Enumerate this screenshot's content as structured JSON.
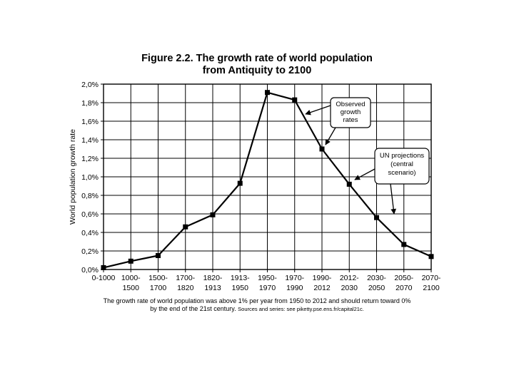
{
  "figure": {
    "title_line1": "Figure 2.2. The growth rate of world population",
    "title_line2": "from Antiquity to 2100"
  },
  "chart_data": {
    "type": "line",
    "categories": [
      "0-1000",
      "1000-1500",
      "1500-1700",
      "1700-1820",
      "1820-1913",
      "1913-1950",
      "1950-1970",
      "1970-1990",
      "1990-2012",
      "2012-2030",
      "2030-2050",
      "2050-2070",
      "2070-2100"
    ],
    "category_lines": [
      [
        "0-1000"
      ],
      [
        "1000-",
        "1500"
      ],
      [
        "1500-",
        "1700"
      ],
      [
        "1700-",
        "1820"
      ],
      [
        "1820-",
        "1913"
      ],
      [
        "1913-",
        "1950"
      ],
      [
        "1950-",
        "1970"
      ],
      [
        "1970-",
        "1990"
      ],
      [
        "1990-",
        "2012"
      ],
      [
        "2012-",
        "2030"
      ],
      [
        "2030-",
        "2050"
      ],
      [
        "2050-",
        "2070"
      ],
      [
        "2070-",
        "2100"
      ]
    ],
    "values": [
      0.0002,
      0.0009,
      0.0015,
      0.0046,
      0.0059,
      0.0093,
      0.0191,
      0.0183,
      0.013,
      0.0092,
      0.0056,
      0.0027,
      0.0014
    ],
    "ylabel": "World population growth rate",
    "ylim": [
      0,
      0.02
    ],
    "yticks": [
      0,
      0.002,
      0.004,
      0.006,
      0.008,
      0.01,
      0.012,
      0.014,
      0.016,
      0.018,
      0.02
    ],
    "ytick_labels": [
      "0,0%",
      "0,2%",
      "0,4%",
      "0,6%",
      "0,8%",
      "1,0%",
      "1,2%",
      "1,4%",
      "1,6%",
      "1,8%",
      "2,0%"
    ],
    "grid": true,
    "annotations": [
      {
        "lines": [
          "Observed",
          "growth",
          "rates"
        ]
      },
      {
        "lines": [
          "UN  projections",
          "(central",
          "scenario)"
        ]
      }
    ],
    "colors": {
      "line": "#000000",
      "grid": "#000000",
      "background": "#ffffff"
    }
  },
  "caption": {
    "line1": "The growth rate of world population was above 1% per year from 1950 to 2012 and should return toward 0%",
    "line2": "by the end of the 21st century.",
    "source": "Sources and series: see piketty.pse.ens.fr/capital21c."
  }
}
